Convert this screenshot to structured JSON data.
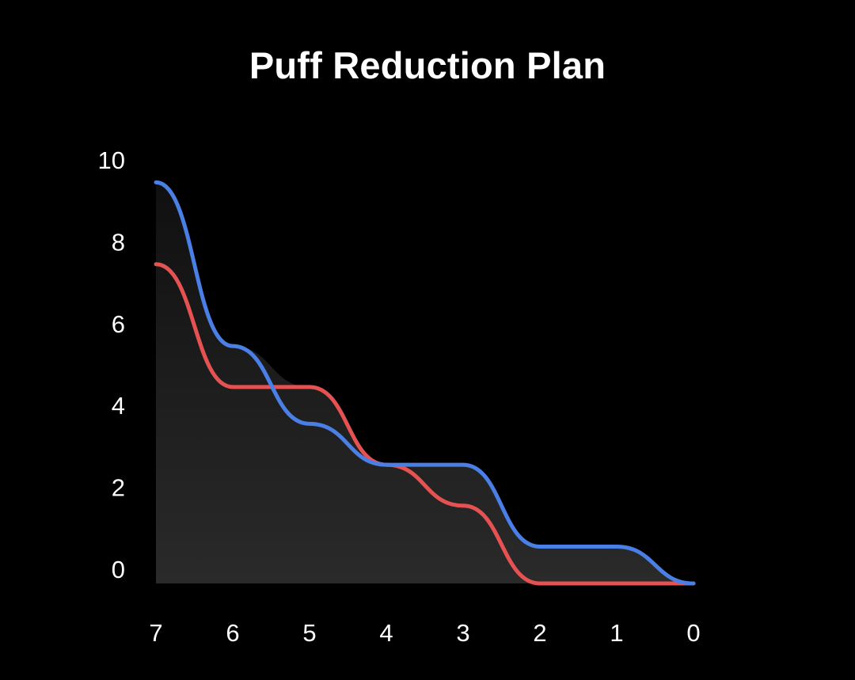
{
  "chart_data": {
    "type": "line",
    "title": "Puff Reduction Plan",
    "xlabel": "",
    "ylabel": "",
    "x": [
      7,
      6,
      5,
      4,
      3,
      2,
      1,
      0
    ],
    "x_reversed": true,
    "ylim": [
      0,
      10
    ],
    "y_ticks": [
      0,
      2,
      4,
      6,
      8,
      10
    ],
    "grid": false,
    "legend": "none",
    "series": [
      {
        "color": "#4a7fe6",
        "values": [
          9.8,
          5.8,
          3.9,
          2.9,
          2.9,
          0.9,
          0.9,
          0
        ]
      },
      {
        "color": "#e65252",
        "values": [
          7.8,
          4.8,
          4.8,
          2.9,
          1.9,
          0,
          0,
          0
        ]
      }
    ],
    "area_fill": {
      "top": "#101010",
      "bottom": "#2a2a2a"
    }
  }
}
